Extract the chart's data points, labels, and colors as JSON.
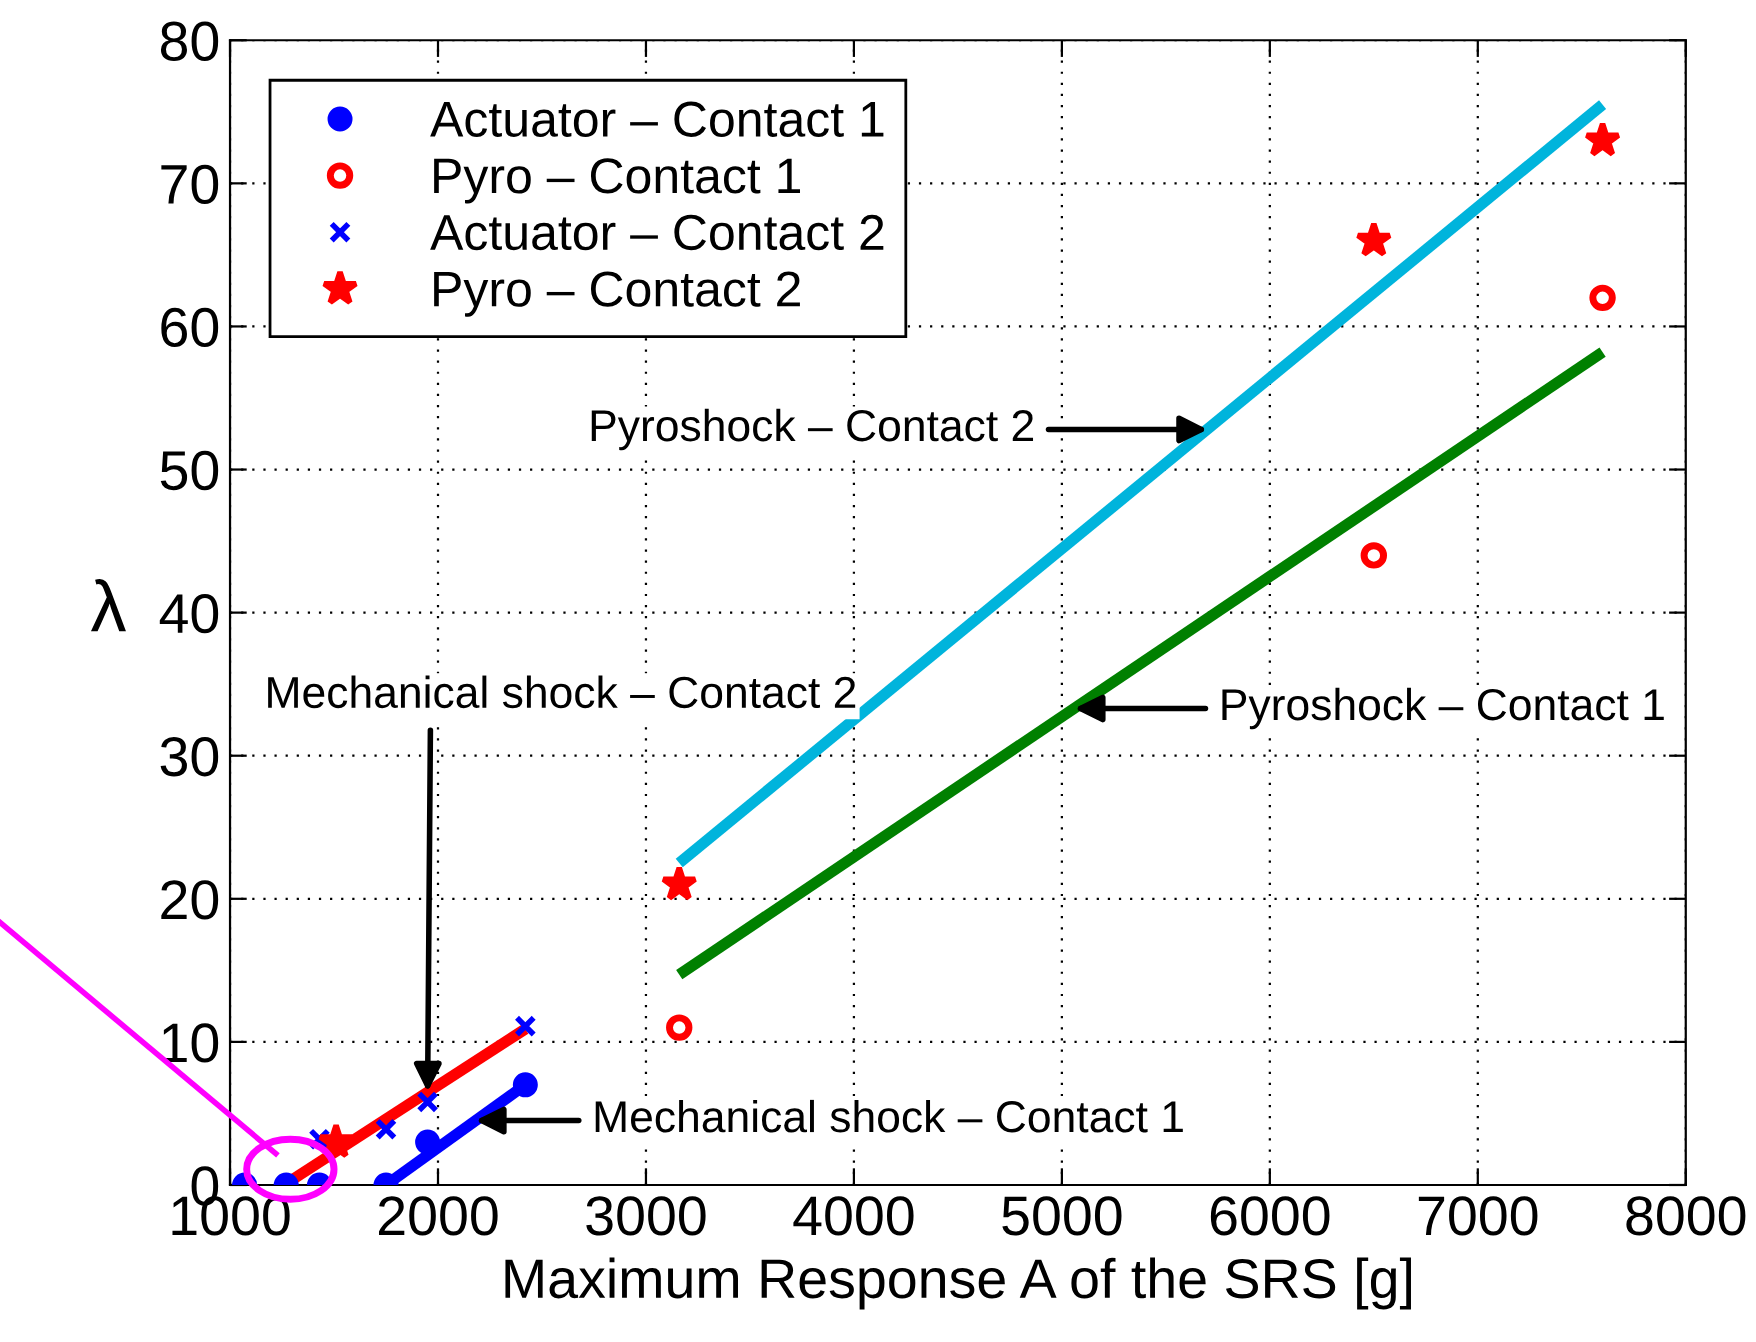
{
  "chart_data": {
    "type": "scatter",
    "xlabel": "Maximum Response A of the SRS [g]",
    "ylabel": "λ",
    "xlim": [
      1000,
      8000
    ],
    "xticks": [
      1000,
      2000,
      3000,
      4000,
      5000,
      6000,
      7000,
      8000
    ],
    "ylim": [
      0,
      80
    ],
    "yticks": [
      0,
      10,
      20,
      30,
      40,
      50,
      60,
      70,
      80
    ],
    "grid": true,
    "legend": "top left",
    "series": [
      {
        "name": "Actuator – Contact 1",
        "marker": "circle",
        "color": "#0000ff",
        "x": [
          1070,
          1270,
          1430,
          1750,
          1950,
          2420
        ],
        "values": [
          0,
          0,
          0,
          0,
          3,
          7
        ]
      },
      {
        "name": "Pyro – Contact 1",
        "marker": "circle-open",
        "color": "#ff0000",
        "x": [
          3160,
          6500,
          7600
        ],
        "values": [
          11,
          44,
          62
        ]
      },
      {
        "name": "Actuator – Contact 2",
        "marker": "cross",
        "color": "#0000ff",
        "x": [
          1430,
          1750,
          1950,
          2420
        ],
        "values": [
          3.2,
          3.9,
          5.8,
          11.1
        ]
      },
      {
        "name": "Pyro – Contact 2",
        "marker": "star",
        "color": "#ff0000",
        "x": [
          1510,
          3160,
          6500,
          7600
        ],
        "values": [
          3,
          21,
          66,
          73
        ]
      },
      {
        "type": "line",
        "color": "#0000ff",
        "x": [
          1750,
          2420
        ],
        "values": [
          0,
          7
        ]
      },
      {
        "type": "line",
        "color": "#ff0000",
        "x": [
          1270,
          2420
        ],
        "values": [
          0.1,
          10.9
        ]
      },
      {
        "type": "line",
        "color": "#00b4dc",
        "x": [
          3160,
          7600
        ],
        "values": [
          22.5,
          75.5
        ]
      },
      {
        "type": "line",
        "color": "#008000",
        "x": [
          3160,
          7600
        ],
        "values": [
          14.7,
          58.2
        ]
      }
    ],
    "annotations": [
      {
        "text": "Pyroshock – Contact 2",
        "x": 5700,
        "y": 52.8
      },
      {
        "text": "Pyroshock – Contact 1",
        "x": 5060,
        "y": 33.3
      },
      {
        "text": "Mechanical shock – Contact 2",
        "x": 1950,
        "y": 6.5
      },
      {
        "text": "Mechanical shock – Contact 1",
        "x": 2180,
        "y": 4.5
      }
    ]
  }
}
